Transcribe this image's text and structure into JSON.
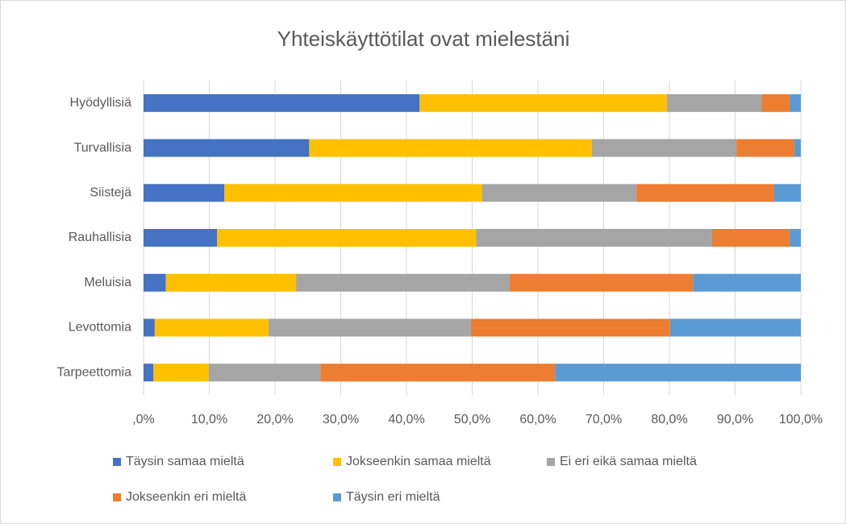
{
  "chart_data": {
    "type": "stacked_barh",
    "title": "Yhteiskäyttötilat ovat mielestäni",
    "categories": [
      "Hyödyllisiä",
      "Turvallisia",
      "Siistejä",
      "Rauhallisia",
      "Meluisia",
      "Levottomia",
      "Tarpeettomia"
    ],
    "series": [
      {
        "name": "Täysin samaa mieltä",
        "color": "#4472c4",
        "values": [
          42.0,
          25.2,
          12.3,
          11.2,
          3.4,
          1.7,
          1.5
        ]
      },
      {
        "name": "Jokseenkin samaa mieltä",
        "color": "#ffc000",
        "values": [
          37.6,
          43.0,
          39.2,
          39.4,
          19.8,
          17.3,
          8.4
        ]
      },
      {
        "name": "Ei eri eikä samaa mieltä",
        "color": "#a5a5a5",
        "values": [
          14.4,
          22.0,
          23.5,
          35.9,
          32.5,
          30.8,
          17.0
        ]
      },
      {
        "name": "Jokseenkin eri mieltä",
        "color": "#ed7d31",
        "values": [
          4.3,
          8.8,
          20.9,
          11.8,
          27.9,
          30.3,
          35.7
        ]
      },
      {
        "name": "Täysin eri mieltä",
        "color": "#5b9bd5",
        "values": [
          1.7,
          1.0,
          4.1,
          1.7,
          16.4,
          19.9,
          37.4
        ]
      }
    ],
    "xlim": [
      0,
      100
    ],
    "xticks": [
      {
        "value": 0,
        "label": ",0%"
      },
      {
        "value": 10,
        "label": "10,0%"
      },
      {
        "value": 20,
        "label": "20,0%"
      },
      {
        "value": 30,
        "label": "30,0%"
      },
      {
        "value": 40,
        "label": "40,0%"
      },
      {
        "value": 50,
        "label": "50,0%"
      },
      {
        "value": 60,
        "label": "60,0%"
      },
      {
        "value": 70,
        "label": "70,0%"
      },
      {
        "value": 80,
        "label": "80,0%"
      },
      {
        "value": 90,
        "label": "90,0%"
      },
      {
        "value": 100,
        "label": "100,0%"
      }
    ],
    "grid": true
  }
}
